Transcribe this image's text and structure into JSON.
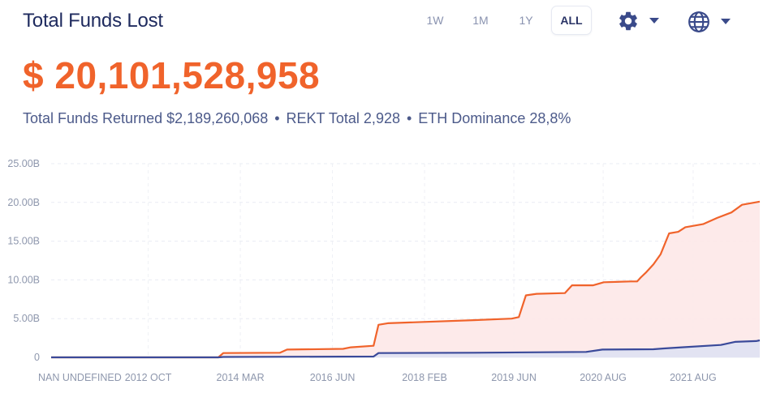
{
  "header": {
    "title": "Total Funds Lost",
    "ranges": [
      "1W",
      "1M",
      "1Y",
      "ALL"
    ],
    "active_range": "ALL",
    "settings_icon": "gear-icon",
    "language_icon": "globe-icon",
    "dropdown_icon": "caret-down-icon"
  },
  "summary": {
    "total_lost": "$ 20,101,528,958",
    "returned_label": "Total Funds Returned $2,189,260,068",
    "rekt_label": "REKT Total 2,928",
    "eth_label": "ETH Dominance 28,8%",
    "separator": "•"
  },
  "colors": {
    "accent": "#f0632b",
    "title": "#1e2a5e",
    "returned_line": "#3a4a9a",
    "lost_fill": "#fde8e8"
  },
  "chart_data": {
    "type": "area",
    "title": "",
    "xlabel": "",
    "ylabel": "",
    "ylim": [
      0,
      25
    ],
    "y_unit": "B",
    "y_ticks": [
      0,
      5,
      10,
      15,
      20,
      25
    ],
    "y_tick_labels": [
      "0",
      "5.00B",
      "10.00B",
      "15.00B",
      "20.00B",
      "25.00B"
    ],
    "x_range": [
      0,
      100
    ],
    "x_ticks": [
      {
        "x": 0,
        "label": "NAN UNDEFINED"
      },
      {
        "x": 13.7,
        "label": "2012 OCT"
      },
      {
        "x": 26.7,
        "label": "2014 MAR"
      },
      {
        "x": 39.7,
        "label": "2016 JUN"
      },
      {
        "x": 52.7,
        "label": "2018 FEB"
      },
      {
        "x": 65.3,
        "label": "2019 JUN"
      },
      {
        "x": 77.9,
        "label": "2020 AUG"
      },
      {
        "x": 90.6,
        "label": "2021 AUG"
      }
    ],
    "grid": true,
    "series": [
      {
        "name": "",
        "color": "#f0632b",
        "fill": "#fde8e8",
        "points": [
          [
            0,
            0
          ],
          [
            23.6,
            0
          ],
          [
            24.3,
            0.55
          ],
          [
            32.3,
            0.6
          ],
          [
            33.3,
            1.0
          ],
          [
            41.2,
            1.1
          ],
          [
            42.3,
            1.3
          ],
          [
            45.5,
            1.5
          ],
          [
            46.2,
            4.2
          ],
          [
            47.5,
            4.4
          ],
          [
            59.6,
            4.8
          ],
          [
            65.0,
            5.0
          ],
          [
            66.0,
            5.2
          ],
          [
            67.0,
            8.0
          ],
          [
            68.5,
            8.2
          ],
          [
            72.5,
            8.3
          ],
          [
            73.5,
            9.3
          ],
          [
            76.5,
            9.3
          ],
          [
            78.0,
            9.7
          ],
          [
            81.8,
            9.8
          ],
          [
            82.7,
            9.8
          ],
          [
            83.2,
            10.3
          ],
          [
            84.0,
            11.0
          ],
          [
            85.0,
            12.0
          ],
          [
            86.0,
            13.3
          ],
          [
            87.2,
            16.0
          ],
          [
            88.5,
            16.2
          ],
          [
            89.5,
            16.8
          ],
          [
            92.0,
            17.2
          ],
          [
            94.0,
            18.0
          ],
          [
            96.0,
            18.7
          ],
          [
            97.5,
            19.7
          ],
          [
            100,
            20.1
          ]
        ]
      },
      {
        "name": "",
        "color": "#3a4a9a",
        "fill": "#dfe2f3",
        "points": [
          [
            0,
            0
          ],
          [
            23.6,
            0
          ],
          [
            24.3,
            0.05
          ],
          [
            45.5,
            0.1
          ],
          [
            46.2,
            0.55
          ],
          [
            59.6,
            0.6
          ],
          [
            75.5,
            0.7
          ],
          [
            77.8,
            1.0
          ],
          [
            85.0,
            1.05
          ],
          [
            86.5,
            1.15
          ],
          [
            89.0,
            1.3
          ],
          [
            94.5,
            1.6
          ],
          [
            96.5,
            2.0
          ],
          [
            99.5,
            2.1
          ],
          [
            100,
            2.2
          ]
        ]
      }
    ]
  }
}
